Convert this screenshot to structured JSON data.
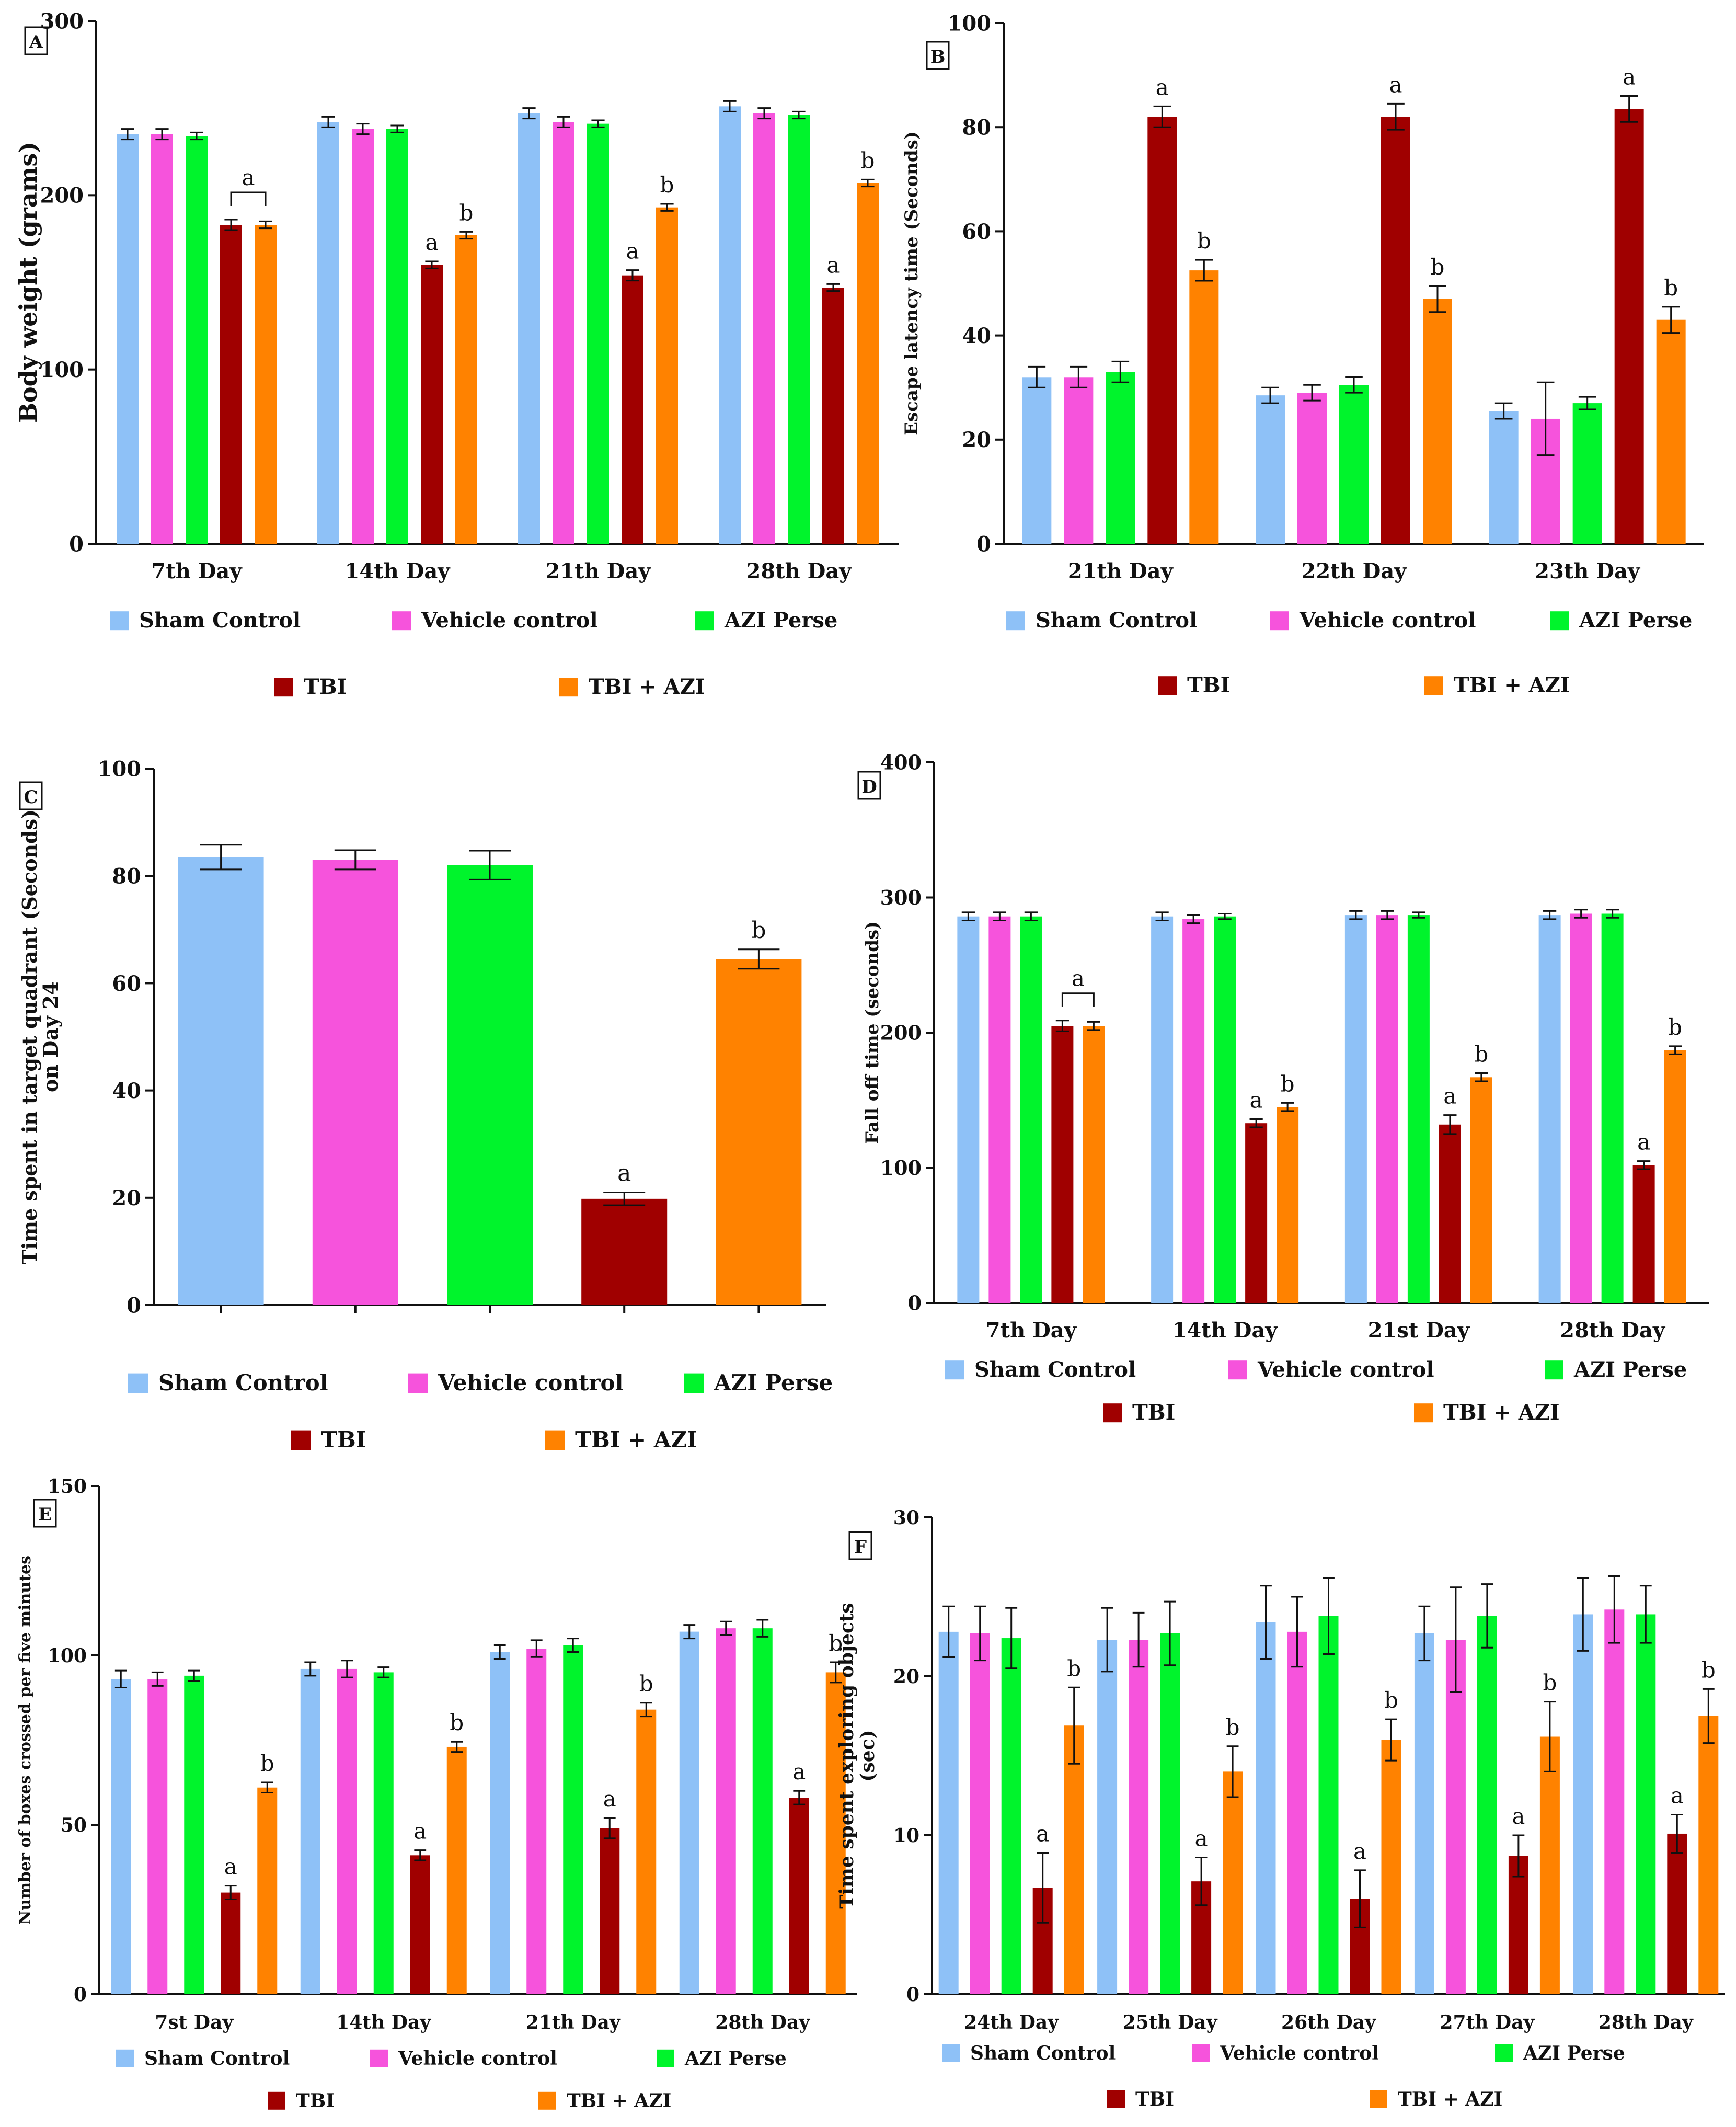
{
  "colors": {
    "Sham Control": "#8ec1f7",
    "Vehicle control": "#f653dc",
    "AZI Perse": "#00f42c",
    "TBI": "#a00000",
    "TBI + AZI": "#ff8200"
  },
  "chart_data": [
    {
      "panel": "A",
      "type": "bar",
      "ylabel": "Body weight (grams)",
      "ylim": [
        0,
        300
      ],
      "yticks": [
        0,
        100,
        200,
        300
      ],
      "categories": [
        "7th Day",
        "14th Day",
        "21th Day",
        "28th Day"
      ],
      "series": [
        {
          "name": "Sham Control",
          "values": [
            235,
            242,
            247,
            251
          ],
          "errors": [
            3,
            3,
            3,
            3
          ]
        },
        {
          "name": "Vehicle control",
          "values": [
            235,
            238,
            242,
            247
          ],
          "errors": [
            3,
            3,
            3,
            3
          ]
        },
        {
          "name": "AZI Perse",
          "values": [
            234,
            238,
            241,
            246
          ],
          "errors": [
            2,
            2,
            2,
            2
          ]
        },
        {
          "name": "TBI",
          "values": [
            183,
            160,
            154,
            147
          ],
          "errors": [
            3,
            2,
            3,
            2
          ]
        },
        {
          "name": "TBI + AZI",
          "values": [
            183,
            177,
            193,
            207
          ],
          "errors": [
            2,
            2,
            2,
            2
          ]
        }
      ],
      "annotations": [
        {
          "category": 0,
          "series": 3,
          "text": "a",
          "bracket_to": 4
        },
        {
          "category": 1,
          "series": 3,
          "text": "a"
        },
        {
          "category": 1,
          "series": 4,
          "text": "b"
        },
        {
          "category": 2,
          "series": 3,
          "text": "a"
        },
        {
          "category": 2,
          "series": 4,
          "text": "b"
        },
        {
          "category": 3,
          "series": 3,
          "text": "a"
        },
        {
          "category": 3,
          "series": 4,
          "text": "b"
        }
      ]
    },
    {
      "panel": "B",
      "type": "bar",
      "ylabel": "Escape latency time (Seconds)",
      "ylim": [
        0,
        100
      ],
      "yticks": [
        0,
        20,
        40,
        60,
        80,
        100
      ],
      "categories": [
        "21th Day",
        "22th Day",
        "23th Day"
      ],
      "series": [
        {
          "name": "Sham Control",
          "values": [
            32,
            28.5,
            25.5
          ],
          "errors": [
            2,
            1.5,
            1.5
          ]
        },
        {
          "name": "Vehicle control",
          "values": [
            32,
            29,
            24
          ],
          "errors": [
            2,
            1.5,
            7
          ]
        },
        {
          "name": "AZI Perse",
          "values": [
            33,
            30.5,
            27
          ],
          "errors": [
            2,
            1.5,
            1.2
          ]
        },
        {
          "name": "TBI",
          "values": [
            82,
            82,
            83.5
          ],
          "errors": [
            2,
            2.5,
            2.5
          ]
        },
        {
          "name": "TBI + AZI",
          "values": [
            52.5,
            47,
            43
          ],
          "errors": [
            2,
            2.5,
            2.5
          ]
        }
      ],
      "annotations": [
        {
          "category": 0,
          "series": 3,
          "text": "a"
        },
        {
          "category": 0,
          "series": 4,
          "text": "b"
        },
        {
          "category": 1,
          "series": 3,
          "text": "a"
        },
        {
          "category": 1,
          "series": 4,
          "text": "b"
        },
        {
          "category": 2,
          "series": 3,
          "text": "a"
        },
        {
          "category": 2,
          "series": 4,
          "text": "b"
        }
      ]
    },
    {
      "panel": "C",
      "type": "bar",
      "ylabel_lines": [
        "Time spent in target quadrant  (Seconds)",
        "on Day 24"
      ],
      "ylim": [
        0,
        100
      ],
      "yticks": [
        0,
        20,
        40,
        60,
        80,
        100
      ],
      "categories": [
        "Sham Control",
        "Vehicle control",
        "AZI Perse",
        "TBI",
        "TBI + AZI"
      ],
      "values": [
        83.5,
        83,
        82,
        19.8,
        64.5
      ],
      "errors": [
        2.3,
        1.8,
        2.7,
        1.2,
        1.8
      ],
      "annotations": [
        {
          "index": 3,
          "text": "a"
        },
        {
          "index": 4,
          "text": "b"
        }
      ]
    },
    {
      "panel": "D",
      "type": "bar",
      "ylabel": "Fall off time (seconds)",
      "ylim": [
        0,
        400
      ],
      "yticks": [
        0,
        100,
        200,
        300,
        400
      ],
      "categories": [
        "7th  Day",
        "14th Day",
        "21st Day",
        "28th Day"
      ],
      "series": [
        {
          "name": "Sham Control",
          "values": [
            286,
            286,
            287,
            287
          ],
          "errors": [
            3,
            3,
            3,
            3
          ]
        },
        {
          "name": "Vehicle control",
          "values": [
            286,
            284,
            287,
            288
          ],
          "errors": [
            3,
            3,
            3,
            3
          ]
        },
        {
          "name": "AZI Perse",
          "values": [
            286,
            286,
            287,
            288
          ],
          "errors": [
            3,
            2,
            2,
            3
          ]
        },
        {
          "name": "TBI",
          "values": [
            205,
            133,
            132,
            102
          ],
          "errors": [
            4,
            3,
            7,
            3
          ]
        },
        {
          "name": "TBI + AZI",
          "values": [
            205,
            145,
            167,
            187
          ],
          "errors": [
            3,
            3,
            3,
            3
          ]
        }
      ],
      "annotations": [
        {
          "category": 0,
          "series": 3,
          "text": "a",
          "bracket_to": 4
        },
        {
          "category": 1,
          "series": 3,
          "text": "a"
        },
        {
          "category": 1,
          "series": 4,
          "text": "b"
        },
        {
          "category": 2,
          "series": 3,
          "text": "a"
        },
        {
          "category": 2,
          "series": 4,
          "text": "b"
        },
        {
          "category": 3,
          "series": 3,
          "text": "a"
        },
        {
          "category": 3,
          "series": 4,
          "text": "b"
        }
      ]
    },
    {
      "panel": "E",
      "type": "bar",
      "ylabel": "Number of boxes crossed per five minutes",
      "ylim": [
        0,
        150
      ],
      "yticks": [
        0,
        50,
        100,
        150
      ],
      "categories": [
        "7st Day",
        "14th Day",
        "21th Day",
        "28th Day"
      ],
      "series": [
        {
          "name": "Sham Control",
          "values": [
            93,
            96,
            101,
            107
          ],
          "errors": [
            2.5,
            2,
            2,
            2
          ]
        },
        {
          "name": "Vehicle control",
          "values": [
            93,
            96,
            102,
            108
          ],
          "errors": [
            2,
            2.5,
            2.5,
            2
          ]
        },
        {
          "name": "AZI Perse",
          "values": [
            94,
            95,
            103,
            108
          ],
          "errors": [
            1.5,
            1.5,
            2,
            2.5
          ]
        },
        {
          "name": "TBI",
          "values": [
            30,
            41,
            49,
            58
          ],
          "errors": [
            2,
            1.5,
            3,
            2
          ]
        },
        {
          "name": "TBI + AZI",
          "values": [
            61,
            73,
            84,
            95
          ],
          "errors": [
            1.5,
            1.5,
            2,
            3
          ]
        }
      ],
      "annotations": [
        {
          "category": 0,
          "series": 3,
          "text": "a"
        },
        {
          "category": 0,
          "series": 4,
          "text": "b"
        },
        {
          "category": 1,
          "series": 3,
          "text": "a"
        },
        {
          "category": 1,
          "series": 4,
          "text": "b"
        },
        {
          "category": 2,
          "series": 3,
          "text": "a"
        },
        {
          "category": 2,
          "series": 4,
          "text": "b"
        },
        {
          "category": 3,
          "series": 3,
          "text": "a"
        },
        {
          "category": 3,
          "series": 4,
          "text": "b"
        }
      ]
    },
    {
      "panel": "F",
      "type": "bar",
      "ylabel_lines": [
        "Time spent exploring objects",
        "(sec)"
      ],
      "ylim": [
        0,
        30
      ],
      "yticks": [
        0,
        10,
        20,
        30
      ],
      "categories": [
        "24th  Day",
        "25th Day",
        "26th Day",
        "27th Day",
        "28th Day"
      ],
      "series": [
        {
          "name": "Sham Control",
          "values": [
            22.8,
            22.3,
            23.4,
            22.7,
            23.9
          ],
          "errors": [
            1.6,
            2,
            2.3,
            1.7,
            2.3
          ]
        },
        {
          "name": "Vehicle control",
          "values": [
            22.7,
            22.3,
            22.8,
            22.3,
            24.2
          ],
          "errors": [
            1.7,
            1.7,
            2.2,
            3.3,
            2.1
          ]
        },
        {
          "name": "AZI Perse",
          "values": [
            22.4,
            22.7,
            23.8,
            23.8,
            23.9
          ],
          "errors": [
            1.9,
            2,
            2.4,
            2,
            1.8
          ]
        },
        {
          "name": "TBI",
          "values": [
            6.7,
            7.1,
            6,
            8.7,
            10.1
          ],
          "errors": [
            2.2,
            1.5,
            1.8,
            1.3,
            1.2
          ]
        },
        {
          "name": "TBI + AZI",
          "values": [
            16.9,
            14,
            16,
            16.2,
            17.5
          ],
          "errors": [
            2.4,
            1.6,
            1.3,
            2.2,
            1.7
          ]
        }
      ],
      "annotations": [
        {
          "category": 0,
          "series": 3,
          "text": "a"
        },
        {
          "category": 0,
          "series": 4,
          "text": "b"
        },
        {
          "category": 1,
          "series": 3,
          "text": "a"
        },
        {
          "category": 1,
          "series": 4,
          "text": "b"
        },
        {
          "category": 2,
          "series": 3,
          "text": "a"
        },
        {
          "category": 2,
          "series": 4,
          "text": "b"
        },
        {
          "category": 3,
          "series": 3,
          "text": "a"
        },
        {
          "category": 3,
          "series": 4,
          "text": "b"
        },
        {
          "category": 4,
          "series": 3,
          "text": "a"
        },
        {
          "category": 4,
          "series": 4,
          "text": "b"
        }
      ]
    }
  ]
}
